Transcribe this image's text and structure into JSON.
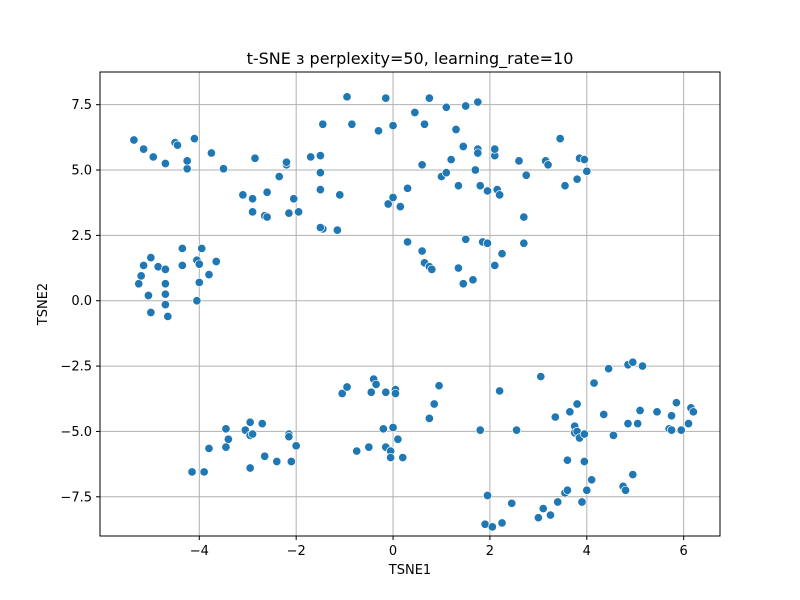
{
  "chart_data": {
    "type": "scatter",
    "title": "t-SNE з perplexity=50, learning_rate=10",
    "xlabel": "TSNE1",
    "ylabel": "TSNE2",
    "xlim": [
      -6.05,
      6.75
    ],
    "ylim": [
      -9.0,
      8.75
    ],
    "xticks": [
      -4,
      -2,
      0,
      2,
      4,
      6
    ],
    "xtick_labels": [
      "−4",
      "−2",
      "0",
      "2",
      "4",
      "6"
    ],
    "yticks": [
      -7.5,
      -5.0,
      -2.5,
      0.0,
      2.5,
      5.0,
      7.5
    ],
    "ytick_labels": [
      "−7.5",
      "−5.0",
      "−2.5",
      "0.0",
      "2.5",
      "5.0",
      "7.5"
    ],
    "grid": true,
    "marker_color": "#1f77b4",
    "points": [
      [
        -5.35,
        6.15
      ],
      [
        -5.15,
        5.8
      ],
      [
        -4.95,
        5.5
      ],
      [
        -4.5,
        6.05
      ],
      [
        -4.45,
        5.95
      ],
      [
        -4.1,
        6.2
      ],
      [
        -4.7,
        5.25
      ],
      [
        -4.25,
        5.05
      ],
      [
        -4.25,
        5.35
      ],
      [
        -3.75,
        5.65
      ],
      [
        -3.5,
        5.05
      ],
      [
        -5.25,
        0.65
      ],
      [
        -5.2,
        0.95
      ],
      [
        -5.15,
        1.35
      ],
      [
        -5.0,
        1.65
      ],
      [
        -4.85,
        1.3
      ],
      [
        -4.7,
        1.2
      ],
      [
        -4.7,
        0.65
      ],
      [
        -5.05,
        0.2
      ],
      [
        -4.7,
        0.25
      ],
      [
        -5.0,
        -0.45
      ],
      [
        -4.7,
        -0.15
      ],
      [
        -4.65,
        -0.6
      ],
      [
        -4.35,
        1.35
      ],
      [
        -4.35,
        2.0
      ],
      [
        -4.05,
        1.55
      ],
      [
        -3.95,
        2.0
      ],
      [
        -4.0,
        1.4
      ],
      [
        -4.05,
        0.0
      ],
      [
        -3.8,
        1.0
      ],
      [
        -4.0,
        0.7
      ],
      [
        -3.65,
        1.5
      ],
      [
        -3.1,
        4.05
      ],
      [
        -2.9,
        3.9
      ],
      [
        -2.85,
        5.45
      ],
      [
        -2.6,
        4.15
      ],
      [
        -2.35,
        4.75
      ],
      [
        -2.2,
        5.2
      ],
      [
        -2.2,
        5.3
      ],
      [
        -2.05,
        3.9
      ],
      [
        -2.15,
        3.35
      ],
      [
        -1.95,
        3.4
      ],
      [
        -2.9,
        3.4
      ],
      [
        -2.65,
        3.25
      ],
      [
        -2.6,
        3.2
      ],
      [
        -1.7,
        5.5
      ],
      [
        -1.5,
        5.55
      ],
      [
        -1.5,
        4.9
      ],
      [
        -1.5,
        4.25
      ],
      [
        -1.1,
        4.05
      ],
      [
        -1.45,
        2.75
      ],
      [
        -1.5,
        2.8
      ],
      [
        -1.15,
        2.7
      ],
      [
        -1.45,
        6.75
      ],
      [
        -0.95,
        7.8
      ],
      [
        -0.85,
        6.75
      ],
      [
        -0.15,
        7.75
      ],
      [
        -0.3,
        6.5
      ],
      [
        0.0,
        6.7
      ],
      [
        0.45,
        7.2
      ],
      [
        0.75,
        7.75
      ],
      [
        0.65,
        6.75
      ],
      [
        1.1,
        7.4
      ],
      [
        1.3,
        6.55
      ],
      [
        1.5,
        7.45
      ],
      [
        1.75,
        7.6
      ],
      [
        0.6,
        5.2
      ],
      [
        1.0,
        4.75
      ],
      [
        1.2,
        5.4
      ],
      [
        1.1,
        4.9
      ],
      [
        1.35,
        4.4
      ],
      [
        1.45,
        5.9
      ],
      [
        1.7,
        5.0
      ],
      [
        1.75,
        5.8
      ],
      [
        1.75,
        5.65
      ],
      [
        1.8,
        4.4
      ],
      [
        1.95,
        4.2
      ],
      [
        2.1,
        5.55
      ],
      [
        2.1,
        5.8
      ],
      [
        2.15,
        4.25
      ],
      [
        2.2,
        4.05
      ],
      [
        2.6,
        5.35
      ],
      [
        2.75,
        4.8
      ],
      [
        3.15,
        5.35
      ],
      [
        3.2,
        5.2
      ],
      [
        3.45,
        6.2
      ],
      [
        3.55,
        4.4
      ],
      [
        3.8,
        4.65
      ],
      [
        3.85,
        5.45
      ],
      [
        3.95,
        5.4
      ],
      [
        4.0,
        4.95
      ],
      [
        0.3,
        4.3
      ],
      [
        -0.1,
        3.7
      ],
      [
        0.0,
        3.95
      ],
      [
        0.15,
        3.6
      ],
      [
        2.7,
        3.2
      ],
      [
        0.3,
        2.25
      ],
      [
        0.6,
        1.9
      ],
      [
        0.65,
        1.45
      ],
      [
        0.75,
        1.3
      ],
      [
        0.8,
        1.2
      ],
      [
        1.35,
        1.25
      ],
      [
        1.5,
        2.35
      ],
      [
        1.45,
        0.65
      ],
      [
        1.65,
        0.8
      ],
      [
        1.85,
        2.25
      ],
      [
        1.95,
        2.2
      ],
      [
        2.1,
        1.35
      ],
      [
        2.25,
        1.8
      ],
      [
        2.7,
        2.2
      ],
      [
        -4.15,
        -6.55
      ],
      [
        -3.9,
        -6.55
      ],
      [
        -3.8,
        -5.65
      ],
      [
        -3.45,
        -4.9
      ],
      [
        -3.4,
        -5.3
      ],
      [
        -3.45,
        -5.6
      ],
      [
        -3.05,
        -4.95
      ],
      [
        -2.95,
        -4.65
      ],
      [
        -2.95,
        -5.15
      ],
      [
        -2.9,
        -5.1
      ],
      [
        -2.7,
        -4.7
      ],
      [
        -2.65,
        -5.95
      ],
      [
        -2.95,
        -6.4
      ],
      [
        -2.4,
        -6.15
      ],
      [
        -2.15,
        -5.1
      ],
      [
        -2.15,
        -5.2
      ],
      [
        -2.1,
        -6.15
      ],
      [
        -2.0,
        -5.55
      ],
      [
        -1.05,
        -3.55
      ],
      [
        -0.95,
        -3.3
      ],
      [
        -0.75,
        -5.75
      ],
      [
        -0.5,
        -5.6
      ],
      [
        -0.45,
        -3.5
      ],
      [
        -0.4,
        -3.0
      ],
      [
        -0.35,
        -3.2
      ],
      [
        -0.2,
        -4.9
      ],
      [
        -0.15,
        -5.6
      ],
      [
        -0.15,
        -3.5
      ],
      [
        -0.05,
        -5.75
      ],
      [
        -0.05,
        -6.0
      ],
      [
        0.0,
        -4.85
      ],
      [
        0.05,
        -3.4
      ],
      [
        0.05,
        -3.55
      ],
      [
        0.1,
        -5.3
      ],
      [
        0.2,
        -6.0
      ],
      [
        0.75,
        -4.5
      ],
      [
        0.85,
        -3.95
      ],
      [
        0.95,
        -3.25
      ],
      [
        1.8,
        -4.95
      ],
      [
        1.95,
        -7.45
      ],
      [
        1.9,
        -8.55
      ],
      [
        2.05,
        -8.65
      ],
      [
        2.2,
        -3.45
      ],
      [
        2.25,
        -8.5
      ],
      [
        2.45,
        -7.75
      ],
      [
        2.55,
        -4.95
      ],
      [
        3.0,
        -8.3
      ],
      [
        3.05,
        -2.9
      ],
      [
        3.1,
        -7.95
      ],
      [
        3.25,
        -8.2
      ],
      [
        3.4,
        -7.7
      ],
      [
        3.55,
        -7.35
      ],
      [
        3.6,
        -7.25
      ],
      [
        3.65,
        -4.25
      ],
      [
        3.75,
        -4.8
      ],
      [
        3.75,
        -5.05
      ],
      [
        3.8,
        -5.0
      ],
      [
        3.8,
        -3.95
      ],
      [
        3.85,
        -5.25
      ],
      [
        3.9,
        -7.7
      ],
      [
        3.95,
        -6.15
      ],
      [
        4.0,
        -7.25
      ],
      [
        4.1,
        -6.85
      ],
      [
        4.15,
        -3.15
      ],
      [
        4.35,
        -4.35
      ],
      [
        4.45,
        -2.6
      ],
      [
        4.55,
        -5.15
      ],
      [
        4.75,
        -7.1
      ],
      [
        4.8,
        -7.25
      ],
      [
        4.85,
        -2.45
      ],
      [
        4.85,
        -4.7
      ],
      [
        4.95,
        -2.35
      ],
      [
        4.95,
        -6.65
      ],
      [
        5.05,
        -4.7
      ],
      [
        5.1,
        -4.2
      ],
      [
        5.15,
        -2.5
      ],
      [
        5.45,
        -4.25
      ],
      [
        5.7,
        -4.9
      ],
      [
        5.75,
        -4.95
      ],
      [
        5.75,
        -4.4
      ],
      [
        5.85,
        -3.9
      ],
      [
        5.95,
        -4.95
      ],
      [
        6.1,
        -4.7
      ],
      [
        6.15,
        -4.1
      ],
      [
        6.2,
        -4.25
      ],
      [
        3.6,
        -6.1
      ],
      [
        3.95,
        -5.1
      ],
      [
        3.35,
        -4.45
      ]
    ]
  }
}
